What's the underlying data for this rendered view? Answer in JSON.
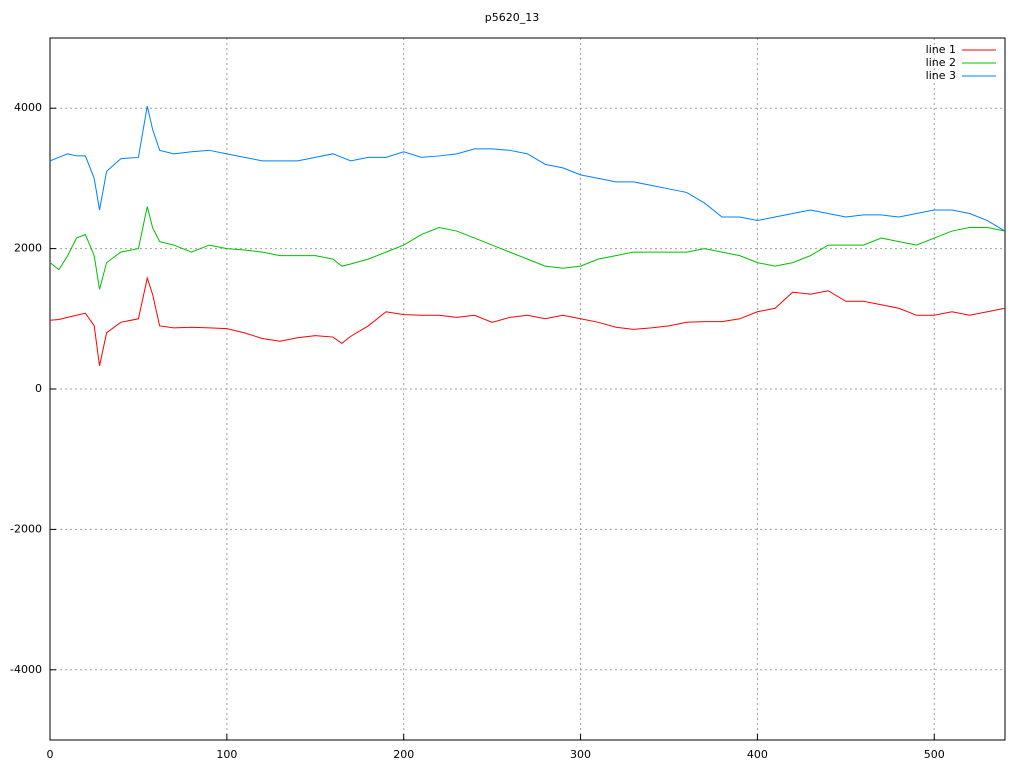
{
  "chart_data": {
    "type": "line",
    "title": "p5620_13",
    "x": [
      0,
      5,
      10,
      15,
      20,
      25,
      28,
      32,
      40,
      50,
      55,
      58,
      62,
      70,
      80,
      90,
      100,
      110,
      120,
      130,
      140,
      150,
      160,
      165,
      170,
      180,
      190,
      200,
      210,
      220,
      230,
      240,
      250,
      260,
      270,
      280,
      290,
      300,
      310,
      320,
      330,
      340,
      350,
      360,
      370,
      380,
      390,
      400,
      410,
      420,
      430,
      440,
      450,
      460,
      470,
      480,
      490,
      500,
      510,
      520,
      530,
      540
    ],
    "series": [
      {
        "name": "line 1",
        "color": "#ff0000",
        "values": [
          980,
          990,
          1020,
          1050,
          1080,
          900,
          330,
          800,
          950,
          1000,
          1580,
          1350,
          900,
          870,
          880,
          870,
          860,
          800,
          720,
          680,
          730,
          760,
          740,
          650,
          750,
          900,
          1100,
          1060,
          1050,
          1050,
          1020,
          1050,
          950,
          1020,
          1050,
          1000,
          1050,
          1000,
          950,
          880,
          850,
          870,
          900,
          950,
          960,
          960,
          1000,
          1100,
          1150,
          1380,
          1350,
          1400,
          1250,
          1250,
          1200,
          1150,
          1050,
          1050,
          1100,
          1050,
          1100,
          1150
        ]
      },
      {
        "name": "line 2",
        "color": "#00c000",
        "values": [
          1800,
          1700,
          1900,
          2150,
          2200,
          1900,
          1420,
          1800,
          1950,
          2000,
          2600,
          2300,
          2100,
          2050,
          1950,
          2050,
          2000,
          1980,
          1950,
          1900,
          1900,
          1900,
          1850,
          1750,
          1780,
          1850,
          1950,
          2050,
          2200,
          2300,
          2250,
          2150,
          2050,
          1950,
          1850,
          1750,
          1720,
          1750,
          1850,
          1900,
          1950,
          1950,
          1950,
          1950,
          2000,
          1950,
          1900,
          1800,
          1750,
          1800,
          1900,
          2050,
          2050,
          2050,
          2150,
          2100,
          2050,
          2150,
          2250,
          2300,
          2300,
          2250
        ]
      },
      {
        "name": "line 3",
        "color": "#0080ff",
        "values": [
          3250,
          3300,
          3350,
          3320,
          3320,
          3000,
          2550,
          3100,
          3280,
          3300,
          4030,
          3700,
          3400,
          3350,
          3380,
          3400,
          3350,
          3300,
          3250,
          3250,
          3250,
          3300,
          3350,
          3300,
          3250,
          3300,
          3300,
          3380,
          3300,
          3320,
          3350,
          3420,
          3420,
          3400,
          3350,
          3200,
          3150,
          3050,
          3000,
          2950,
          2950,
          2900,
          2850,
          2800,
          2650,
          2450,
          2450,
          2400,
          2450,
          2500,
          2550,
          2500,
          2450,
          2480,
          2480,
          2450,
          2500,
          2550,
          2550,
          2500,
          2400,
          2250
        ]
      }
    ],
    "xlim": [
      0,
      540
    ],
    "xticks": [
      0,
      100,
      200,
      300,
      400,
      500
    ],
    "ylim": [
      -5000,
      5000
    ],
    "yticks": [
      -4000,
      -2000,
      0,
      2000,
      4000
    ],
    "grid": true,
    "legend": "top-right"
  }
}
